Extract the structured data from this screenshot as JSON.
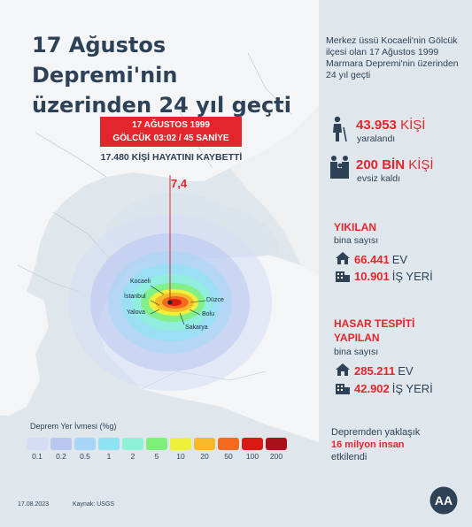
{
  "title": "17 Ağustos Depremi'nin üzerinden 24 yıl geçti",
  "intro": "Merkez üssü Kocaeli'nin Gölcük ilçesi olan 17 Ağustos 1999 Marmara Depremi'nin üzerinden 24 yıl geçti",
  "banner": {
    "line1": "17 AĞUSTOS 1999",
    "line2": "GÖLCÜK 03:02 / 45 SANİYE"
  },
  "deaths": "17.480 KİŞİ HAYATINI KAYBETTİ",
  "magnitude": "7,4",
  "cities": {
    "kocaeli": "Kocaeli",
    "istanbul": "İstanbul",
    "yalova": "Yalova",
    "duzce": "Düzce",
    "bolu": "Bolu",
    "sakarya": "Sakarya"
  },
  "stats": {
    "injured_value": "43.953",
    "injured_unit": "KİŞİ",
    "injured_label": "yaralandı",
    "homeless_value": "200 BİN",
    "homeless_unit": "KİŞİ",
    "homeless_label": "evsiz kaldı"
  },
  "collapsed": {
    "heading": "YIKILAN",
    "sub": "bina sayısı",
    "houses_value": "66.441",
    "houses_unit": "EV",
    "work_value": "10.901",
    "work_unit": "İŞ YERİ"
  },
  "damaged": {
    "heading_line1": "HASAR TESPİTİ",
    "heading_line2": "YAPILAN",
    "sub": "bina sayısı",
    "houses_value": "285.211",
    "houses_unit": "EV",
    "work_value": "42.902",
    "work_unit": "İŞ YERİ"
  },
  "affected": {
    "before": "Depremden yaklaşık",
    "highlight": "16 milyon insan",
    "after": "etkilendi"
  },
  "legend": {
    "title": "Deprem Yer İvmesi (%g)",
    "items": [
      {
        "label": "0.1",
        "color": "#d6dcf5"
      },
      {
        "label": "0.2",
        "color": "#b8c6f0"
      },
      {
        "label": "0.5",
        "color": "#a6d5f5"
      },
      {
        "label": "1",
        "color": "#8ee3f2"
      },
      {
        "label": "2",
        "color": "#8ff0d8"
      },
      {
        "label": "5",
        "color": "#7ef07a"
      },
      {
        "label": "10",
        "color": "#eef03c"
      },
      {
        "label": "20",
        "color": "#f6b92a"
      },
      {
        "label": "50",
        "color": "#f46a1e"
      },
      {
        "label": "100",
        "color": "#d81a12"
      },
      {
        "label": "200",
        "color": "#a8101c"
      }
    ]
  },
  "footer": {
    "date": "17.08.2023",
    "source": "Kaynak: USGS",
    "logo": "AA"
  },
  "colors": {
    "accent": "#e3262b",
    "text": "#2d4257"
  }
}
